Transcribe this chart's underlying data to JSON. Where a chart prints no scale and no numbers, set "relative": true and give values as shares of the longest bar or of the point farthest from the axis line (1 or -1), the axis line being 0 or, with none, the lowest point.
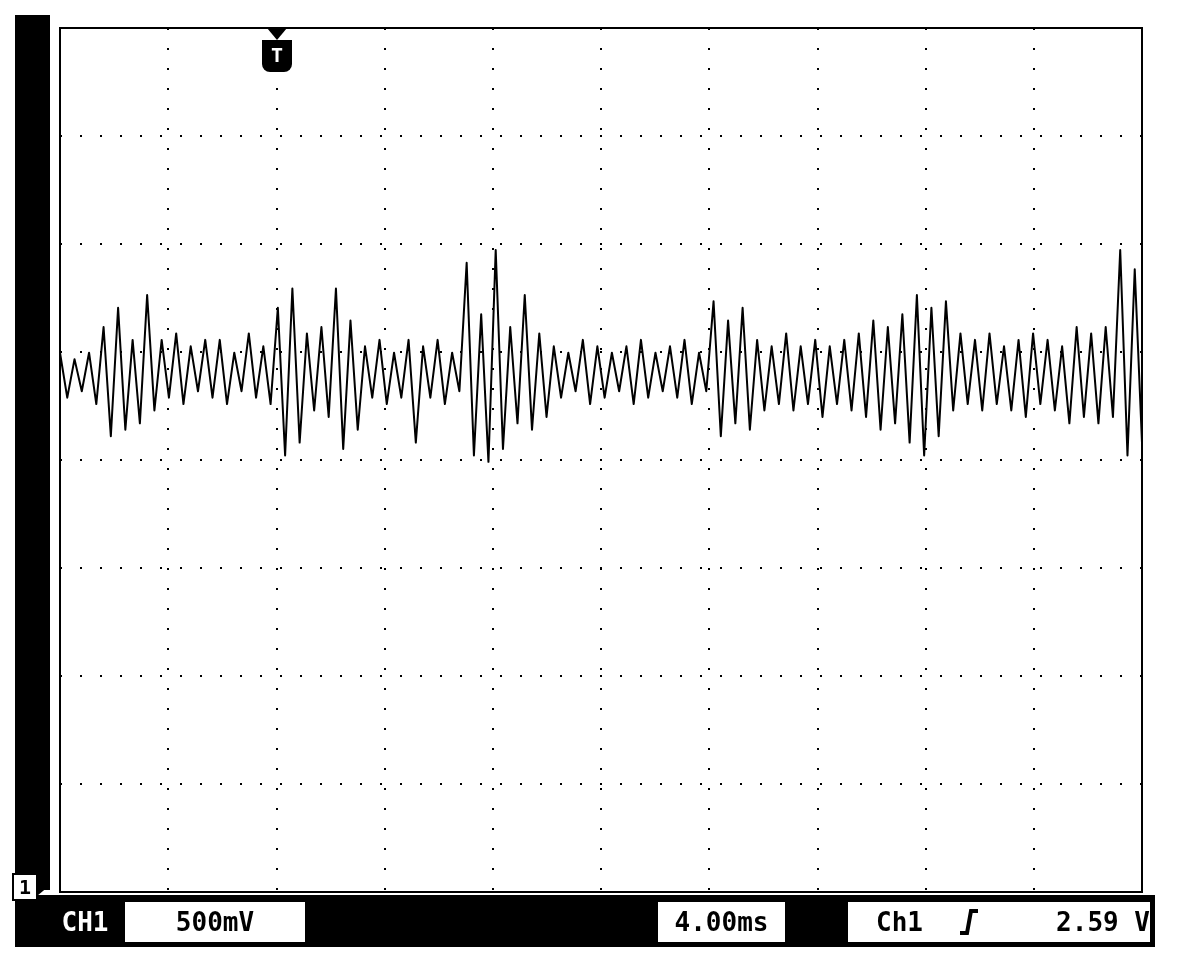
{
  "chart_data": {
    "type": "line",
    "relative": true,
    "grid": true,
    "categories": [
      null,
      null,
      null,
      null,
      null,
      null,
      null,
      null,
      null,
      null,
      null,
      null,
      null,
      null,
      null,
      null,
      null,
      null,
      null,
      null,
      null,
      null,
      null,
      null,
      null,
      null,
      null,
      null,
      null,
      null,
      null,
      null,
      null,
      null,
      null,
      null,
      null,
      null,
      null,
      null,
      null,
      null,
      null,
      null,
      null,
      null,
      null,
      null,
      null,
      null,
      null,
      null,
      null,
      null,
      null,
      null,
      null,
      null,
      null,
      null,
      null,
      null,
      null,
      null,
      null,
      null,
      null,
      null,
      null,
      null,
      null,
      null,
      null,
      null,
      null,
      null,
      null,
      null,
      null,
      null,
      null,
      null,
      null,
      null,
      null,
      null,
      null,
      null,
      null,
      null,
      null,
      null,
      null,
      null,
      null,
      null,
      null,
      null,
      null,
      null,
      null,
      null,
      null,
      null,
      null,
      null,
      null,
      null,
      null,
      null,
      null,
      null,
      null,
      null,
      null,
      null,
      null,
      null,
      null,
      null,
      null,
      null,
      null,
      null,
      null,
      null,
      null,
      null,
      null,
      null,
      null,
      null,
      null,
      null,
      null,
      null,
      null,
      null,
      null,
      null,
      null,
      null,
      null,
      null,
      null,
      null,
      null,
      null,
      null,
      null
    ],
    "series": [
      {
        "color": "#000000",
        "values": [
          0.84,
          0.77,
          0.83,
          0.78,
          0.84,
          0.76,
          0.88,
          0.71,
          0.91,
          0.72,
          0.86,
          0.73,
          0.93,
          0.75,
          0.86,
          0.77,
          0.87,
          0.76,
          0.85,
          0.78,
          0.86,
          0.77,
          0.86,
          0.76,
          0.84,
          0.78,
          0.87,
          0.77,
          0.85,
          0.76,
          0.91,
          0.68,
          0.94,
          0.7,
          0.87,
          0.75,
          0.88,
          0.74,
          0.94,
          0.69,
          0.89,
          0.72,
          0.85,
          0.77,
          0.86,
          0.76,
          0.84,
          0.77,
          0.86,
          0.7,
          0.85,
          0.77,
          0.86,
          0.76,
          0.84,
          0.78,
          0.98,
          0.68,
          0.9,
          0.67,
          1.0,
          0.69,
          0.88,
          0.73,
          0.93,
          0.72,
          0.87,
          0.74,
          0.85,
          0.77,
          0.84,
          0.78,
          0.86,
          0.76,
          0.85,
          0.77,
          0.84,
          0.78,
          0.85,
          0.76,
          0.86,
          0.77,
          0.84,
          0.78,
          0.85,
          0.77,
          0.86,
          0.76,
          0.84,
          0.78,
          0.92,
          0.71,
          0.89,
          0.73,
          0.91,
          0.72,
          0.86,
          0.75,
          0.85,
          0.76,
          0.87,
          0.75,
          0.85,
          0.76,
          0.86,
          0.74,
          0.85,
          0.76,
          0.86,
          0.75,
          0.87,
          0.74,
          0.89,
          0.72,
          0.88,
          0.73,
          0.9,
          0.7,
          0.93,
          0.68,
          0.91,
          0.71,
          0.92,
          0.75,
          0.87,
          0.76,
          0.86,
          0.75,
          0.87,
          0.76,
          0.85,
          0.75,
          0.86,
          0.74,
          0.87,
          0.76,
          0.86,
          0.75,
          0.85,
          0.73,
          0.88,
          0.74,
          0.87,
          0.73,
          0.88,
          0.74,
          1.0,
          0.68,
          0.97,
          0.7
        ]
      }
    ],
    "annotations": [
      "CH1",
      "500mV",
      "4.00ms",
      "Ch1",
      "2.59 V",
      "T",
      "1"
    ]
  }
}
